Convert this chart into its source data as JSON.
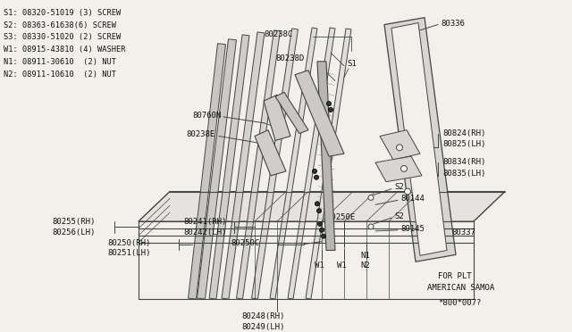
{
  "bg_color": "#f2f0eb",
  "line_color": "#444444",
  "text_color": "#111111",
  "legend_items": [
    "S1: 08320-51019 (3) SCREW",
    "S2: 08363-61638(6) SCREW",
    "S3: 08330-51020 (2) SCREW",
    "W1: 08915-43810 (4) WASHER",
    "N1: 08911-30610  (2) NUT",
    "N2: 08911-10610  (2) NUT"
  ],
  "footer_lines": [
    "FOR PLT",
    "AMERICAN SAMOA",
    "*800*007?"
  ]
}
